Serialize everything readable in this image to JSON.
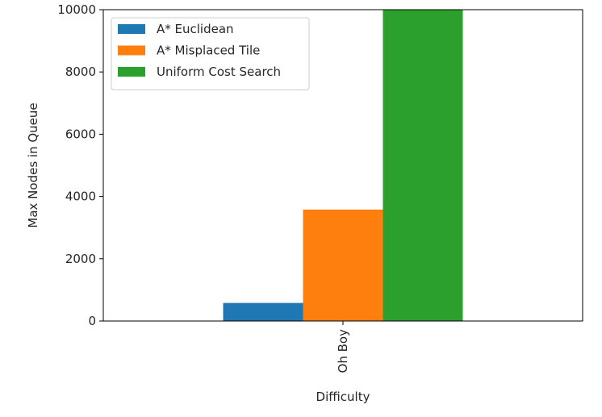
{
  "chart_data": {
    "type": "bar",
    "categories": [
      "Oh Boy"
    ],
    "series": [
      {
        "name": "A* Euclidean",
        "values": [
          580
        ],
        "color": "#1f77b4"
      },
      {
        "name": "A* Misplaced Tile",
        "values": [
          3580
        ],
        "color": "#ff7f0e"
      },
      {
        "name": "Uniform Cost Search",
        "values": [
          10000
        ],
        "color": "#2ca02c"
      }
    ],
    "title": "",
    "xlabel": "Difficulty",
    "ylabel": "Max Nodes in Queue",
    "ylim": [
      0,
      10000
    ],
    "yticks": [
      0,
      2000,
      4000,
      6000,
      8000,
      10000
    ],
    "grid": false,
    "legend_position": "top-left"
  }
}
